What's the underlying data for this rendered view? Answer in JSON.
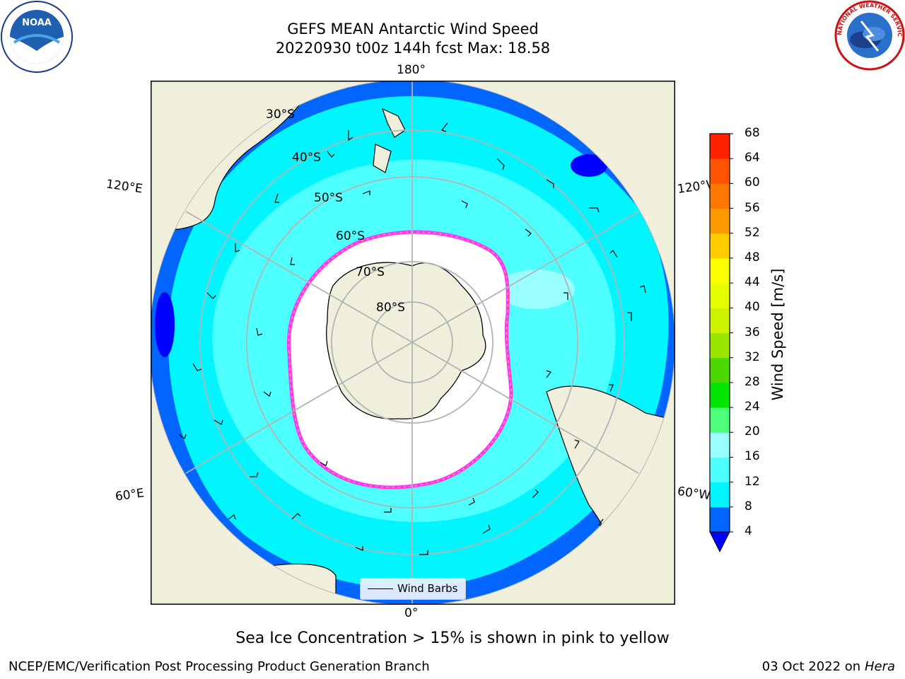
{
  "header": {
    "title_line1": "GEFS MEAN Antarctic Wind Speed",
    "title_line2": "20220930 t00z 144h fcst   Max: 18.58"
  },
  "logos": {
    "noaa_text": "NOAA",
    "nws_text": "NATIONAL WEATHER SERVICE"
  },
  "map": {
    "lon_labels": {
      "top": "180°",
      "bottom": "0°",
      "upper_left": "120°E",
      "upper_right": "120°W",
      "lower_left": "60°E",
      "lower_right": "60°W"
    },
    "lat_labels": [
      "30°S",
      "40°S",
      "50°S",
      "60°S",
      "70°S",
      "80°S"
    ],
    "legend": {
      "label": "Wind Barbs"
    },
    "colors": {
      "land": "#efefdb",
      "ocean_low": "#0066ff",
      "ocean_mid": "#00f5ff",
      "ocean_high": "#4dffff",
      "ice": "#ffffff",
      "ice_edge": "#ff33ff",
      "ice_edge2": "#ffb833"
    }
  },
  "colorbar": {
    "label": "Wind Speed [m/s]",
    "ticks": [
      "4",
      "8",
      "12",
      "16",
      "20",
      "24",
      "28",
      "32",
      "36",
      "40",
      "44",
      "48",
      "52",
      "56",
      "60",
      "64",
      "68"
    ],
    "colors": [
      "#0066ff",
      "#00f5ff",
      "#4dffff",
      "#99ffff",
      "#4dff7a",
      "#00e600",
      "#4dd900",
      "#99e600",
      "#ccf200",
      "#e6ff00",
      "#ffff00",
      "#ffcc00",
      "#ff9900",
      "#ff7700",
      "#ff5500",
      "#ff2200"
    ],
    "under_color": "#0000ff"
  },
  "caption": "Sea Ice Concentration > 15% is shown in pink to yellow",
  "footer": {
    "left": "NCEP/EMC/Verification Post Processing Product Generation Branch",
    "right_prefix": "03 Oct 2022 on ",
    "right_host": "Hera"
  }
}
